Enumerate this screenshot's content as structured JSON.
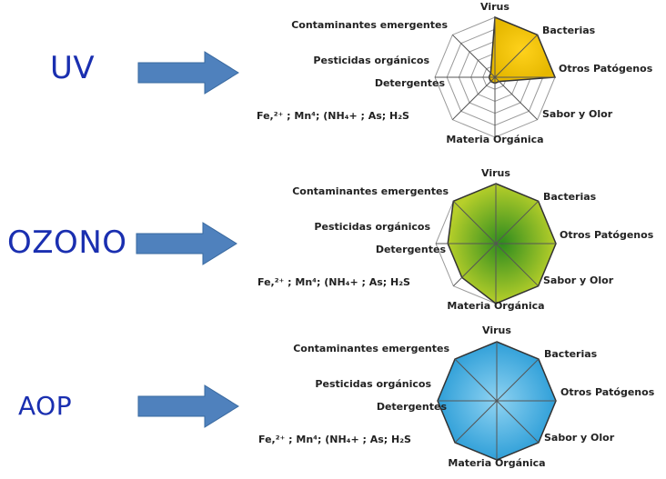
{
  "axes": [
    "Virus",
    "Bacterias",
    "Otros Patógenos",
    "Sabor y Olor",
    "Materia Orgánica",
    "Fe,²⁺ ; Mn⁴; (NH₄+ ; As; H₂S",
    "Detergentes",
    "Pesticidas orgánicos",
    "Contaminantes emergentes"
  ],
  "panels": [
    {
      "name": "UV",
      "values": [
        1.0,
        1.0,
        1.0,
        0.1,
        0.1,
        0.1,
        0.1,
        0.1,
        0.1
      ],
      "gradient_inner": "#ffd21c",
      "gradient_outer": "#e6b800",
      "label_color": "#1a2fb0"
    },
    {
      "name": "OZONO",
      "values": [
        1.0,
        1.0,
        1.0,
        1.0,
        1.0,
        0.8,
        0.8,
        0.8,
        1.0
      ],
      "gradient_inner": "#2e8b1e",
      "gradient_outer": "#b7cf2a",
      "label_color": "#1a2fb0"
    },
    {
      "name": "AOP",
      "values": [
        1.0,
        1.0,
        1.0,
        1.0,
        1.0,
        1.0,
        1.0,
        1.0,
        1.0
      ],
      "gradient_inner": "#8fd3f2",
      "gradient_outer": "#2f9fd8",
      "label_color": "#1a2fb0"
    }
  ],
  "colors": {
    "arrow_fill": "#4f81bd",
    "arrow_stroke": "#3a6aa0",
    "grid": "#9a9a9a",
    "axis_text": "#222222"
  }
}
